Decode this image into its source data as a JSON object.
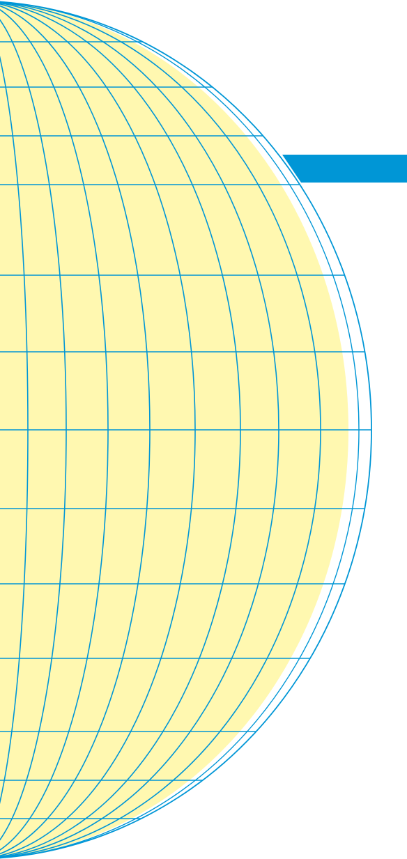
{
  "illustration": {
    "subject": "globe-graticule",
    "colors": {
      "globe_fill": "#fff8b0",
      "line": "#0096d6",
      "band": "#0096d6",
      "background": "#ffffff"
    }
  }
}
